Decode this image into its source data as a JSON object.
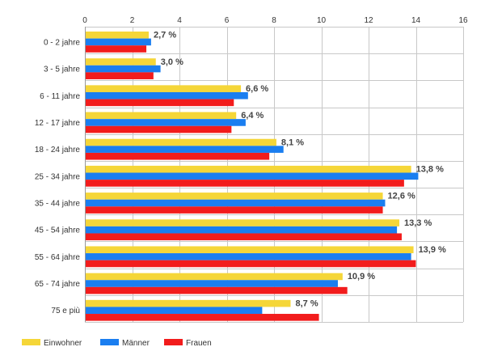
{
  "chart_data": {
    "type": "bar",
    "orientation": "horizontal",
    "categories": [
      "0 - 2 jahre",
      "3 - 5 jahre",
      "6 - 11 jahre",
      "12 - 17 jahre",
      "18 - 24 jahre",
      "25 - 34 jahre",
      "35 - 44 jahre",
      "45 - 54 jahre",
      "55 - 64 jahre",
      "65 - 74 jahre",
      "75 e più"
    ],
    "series": [
      {
        "name": "Einwohner",
        "color": "#f5d638",
        "values": [
          2.7,
          3.0,
          6.6,
          6.4,
          8.1,
          13.8,
          12.6,
          13.3,
          13.9,
          10.9,
          8.7
        ]
      },
      {
        "name": "Männer",
        "color": "#1a7ef0",
        "values": [
          2.8,
          3.2,
          6.9,
          6.8,
          8.4,
          14.1,
          12.7,
          13.2,
          13.8,
          10.7,
          7.5
        ]
      },
      {
        "name": "Frauen",
        "color": "#f21c1c",
        "values": [
          2.6,
          2.9,
          6.3,
          6.2,
          7.8,
          13.5,
          12.6,
          13.4,
          14.0,
          11.1,
          9.9
        ]
      }
    ],
    "data_labels": [
      "2,7 %",
      "3,0 %",
      "6,6 %",
      "6,4 %",
      "8,1 %",
      "13,8 %",
      "12,6 %",
      "13,3 %",
      "13,9 %",
      "10,9 %",
      "8,7 %"
    ],
    "xlim": [
      0,
      16
    ],
    "xticks": [
      0,
      2,
      4,
      6,
      8,
      10,
      12,
      14,
      16
    ],
    "xtick_labels": [
      "0",
      "2",
      "4",
      "6",
      "8",
      "10",
      "12",
      "14",
      "16"
    ],
    "x_axis_position": "top",
    "grid": true,
    "legend_position": "bottom-left"
  }
}
